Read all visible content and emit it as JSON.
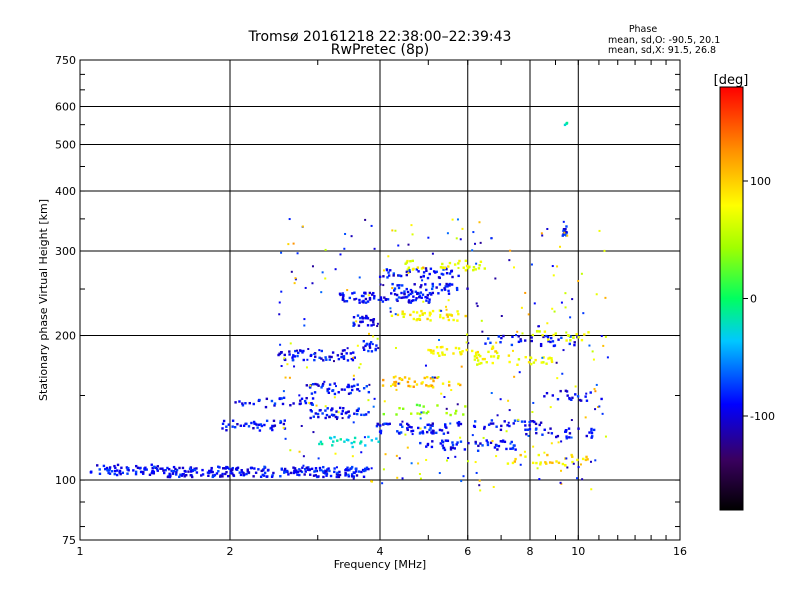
{
  "chart_data": {
    "type": "scatter",
    "title": "Tromsø 20161218 22:38:00–22:39:43",
    "subtitle": "RwPretec (8p)",
    "xlabel": "Frequency [MHz]",
    "ylabel": "Stationary phase Virtual Height [km]",
    "x_scale": "log",
    "y_scale": "log",
    "xlim": [
      1,
      16
    ],
    "ylim": [
      75,
      750
    ],
    "x_ticks": [
      1,
      2,
      4,
      6,
      8,
      10,
      16
    ],
    "x_tick_labels": [
      "1",
      "2",
      "4",
      "6",
      "8",
      "10",
      "16"
    ],
    "y_ticks": [
      75,
      100,
      200,
      300,
      400,
      500,
      600,
      750
    ],
    "y_tick_labels": [
      "75",
      "100",
      "200",
      "300",
      "400",
      "500",
      "600",
      "750"
    ],
    "grid": true,
    "stats": {
      "heading": "Phase",
      "line_o": "mean, sd,O: -90.5, 20.1",
      "line_x": "mean, sd,X:  91.5, 26.8"
    },
    "colorbar": {
      "label": "[deg]",
      "range": [
        -180,
        180
      ],
      "ticks": [
        100,
        0,
        -100
      ],
      "tick_labels": [
        "100",
        "0",
        "-100"
      ]
    },
    "traces": [
      {
        "f": [
          1.05,
          1.5
        ],
        "h": 105,
        "phase": -95,
        "density": 70
      },
      {
        "f": [
          1.5,
          3.8
        ],
        "h": 104,
        "phase": -95,
        "density": 230
      },
      {
        "f": [
          1.9,
          2.6
        ],
        "h": 130,
        "phase": -95,
        "density": 40
      },
      {
        "f": [
          2.05,
          3.0
        ],
        "h": 145,
        "phase": -95,
        "density": 35
      },
      {
        "f": [
          2.5,
          3.6
        ],
        "h": 182,
        "phase": -95,
        "density": 55
      },
      {
        "f": [
          2.8,
          3.8
        ],
        "h": 155,
        "phase": -95,
        "density": 40
      },
      {
        "f": [
          2.9,
          3.8
        ],
        "h": 138,
        "phase": -95,
        "density": 45
      },
      {
        "f": [
          3.3,
          3.9
        ],
        "h": 240,
        "phase": -95,
        "density": 35
      },
      {
        "f": [
          3.5,
          3.9
        ],
        "h": 215,
        "phase": -95,
        "density": 25
      },
      {
        "f": [
          3.7,
          3.95
        ],
        "h": 190,
        "phase": -95,
        "density": 15
      },
      {
        "f": [
          4.0,
          5.2
        ],
        "h": 240,
        "phase": -95,
        "density": 45
      },
      {
        "f": [
          4.0,
          5.8
        ],
        "h": 270,
        "phase": -95,
        "density": 45
      },
      {
        "f": [
          4.2,
          6.0
        ],
        "h": 250,
        "phase": -95,
        "density": 45
      },
      {
        "f": [
          3.9,
          5.5
        ],
        "h": 128,
        "phase": -95,
        "density": 55
      },
      {
        "f": [
          4.8,
          7.5
        ],
        "h": 118,
        "phase": -95,
        "density": 55
      },
      {
        "f": [
          5.5,
          8.5
        ],
        "h": 130,
        "phase": -95,
        "density": 35
      },
      {
        "f": [
          6.5,
          10.2
        ],
        "h": 195,
        "phase": -95,
        "density": 35
      },
      {
        "f": [
          7.5,
          10.8
        ],
        "h": 125,
        "phase": -95,
        "density": 30
      },
      {
        "f": [
          8.5,
          11.2
        ],
        "h": 150,
        "phase": -95,
        "density": 20
      },
      {
        "f": [
          4.2,
          6.0
        ],
        "h": 220,
        "phase": 100,
        "density": 40
      },
      {
        "f": [
          4.5,
          6.5
        ],
        "h": 280,
        "phase": 90,
        "density": 35
      },
      {
        "f": [
          4.0,
          6.0
        ],
        "h": 160,
        "phase": 120,
        "density": 40
      },
      {
        "f": [
          5.0,
          7.0
        ],
        "h": 185,
        "phase": 95,
        "density": 35
      },
      {
        "f": [
          6.0,
          9.0
        ],
        "h": 178,
        "phase": 90,
        "density": 35
      },
      {
        "f": [
          7.0,
          10.5
        ],
        "h": 110,
        "phase": 110,
        "density": 30
      },
      {
        "f": [
          8.0,
          10.5
        ],
        "h": 200,
        "phase": 85,
        "density": 20
      },
      {
        "f": [
          3.0,
          4.0
        ],
        "h": 120,
        "phase": -30,
        "density": 25
      },
      {
        "f": [
          4.0,
          6.0
        ],
        "h": 140,
        "phase": 40,
        "density": 20
      },
      {
        "f": [
          9.3,
          9.5
        ],
        "h": 330,
        "phase": -95,
        "density": 12
      },
      {
        "f": [
          9.4,
          9.5
        ],
        "h": 560,
        "phase": -20,
        "density": 3
      }
    ],
    "scatter_background": {
      "f_range": [
        2.5,
        11.5
      ],
      "h_range": [
        95,
        350
      ],
      "n": 320
    }
  }
}
